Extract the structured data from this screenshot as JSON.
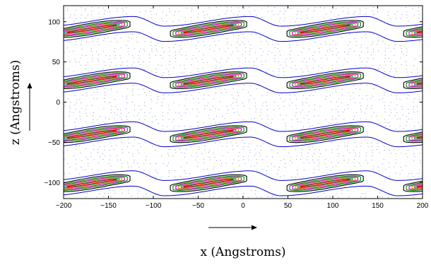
{
  "chart_data": {
    "type": "contour",
    "title": "",
    "xlabel": "x (Angstroms)",
    "ylabel": "z (Angstroms)",
    "xlim": [
      -200,
      200
    ],
    "ylim": [
      -120,
      120
    ],
    "xticks": [
      -200,
      -150,
      -100,
      -50,
      0,
      50,
      100,
      150,
      200
    ],
    "yticks": [
      -100,
      -50,
      0,
      50,
      100
    ],
    "grid": false,
    "legend": "none",
    "period_x": 130,
    "band_centers_z": [
      91,
      27,
      -40,
      -101
    ],
    "contour_levels": [
      {
        "half_width": 9.5,
        "color": "#0000cc"
      },
      {
        "half_width": 7.0,
        "color": "#000000"
      },
      {
        "half_width": 5.2,
        "color": "#008800"
      },
      {
        "half_width": 3.8,
        "color": "#cc00cc"
      },
      {
        "half_width": 2.6,
        "color": "#d4a000"
      },
      {
        "half_width": 1.6,
        "color": "#00a0a0"
      },
      {
        "half_width": 0.8,
        "color": "#ee0000"
      }
    ],
    "colors": {
      "outer_contour": "#0000cc",
      "dotted_field": "#6666cc",
      "axis": "#000000"
    }
  }
}
